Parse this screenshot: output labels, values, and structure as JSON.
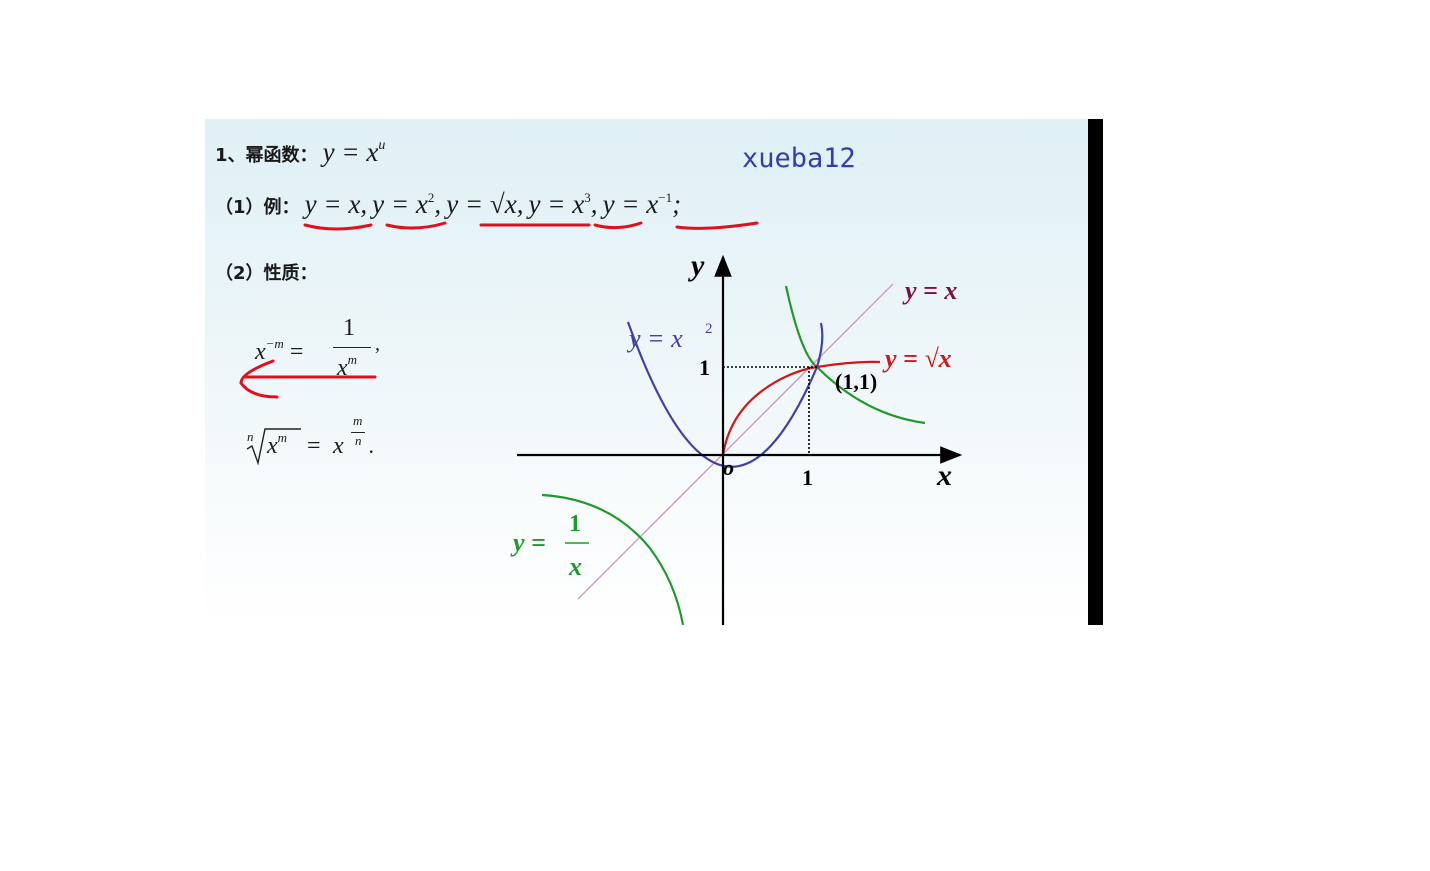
{
  "heading": {
    "label": "1、幂函数：",
    "formula_base": "y = x",
    "formula_exp": "u"
  },
  "watermark": "xueba12",
  "examples": {
    "label": "（1）例：",
    "items": [
      {
        "base": "y = x",
        "exp": "",
        "sep": ","
      },
      {
        "base": "y = x",
        "exp": "2",
        "sep": ","
      },
      {
        "base": "y = √x",
        "exp": "",
        "sep": ","
      },
      {
        "base": "y = x",
        "exp": "3",
        "sep": ","
      },
      {
        "base": "y = x",
        "exp": "−1",
        "sep": ";"
      }
    ]
  },
  "properties": {
    "label": "（2）性质：",
    "rule1": {
      "lhs_base": "x",
      "lhs_exp": "−m",
      "eq": "=",
      "num": "1",
      "den_base": "x",
      "den_exp": "m",
      "tail": ","
    },
    "rule2": {
      "root_index": "n",
      "radicand_base": "x",
      "radicand_exp": "m",
      "eq": "=",
      "rhs_base": "x",
      "rhs_num": "m",
      "rhs_den": "n",
      "tail": "."
    }
  },
  "graph": {
    "axis_x": "x",
    "axis_y": "y",
    "origin": "o",
    "tick_x": "1",
    "tick_y": "1",
    "point_label": "(1,1)",
    "labels": {
      "identity": "y = x",
      "square": "y = x",
      "square_exp": "2",
      "sqrt": "y = √x",
      "inverse_lhs": "y =",
      "inverse_num": "1",
      "inverse_den": "x"
    },
    "colors": {
      "identity": "#c8a0c8",
      "square": "#4040a8",
      "sqrt": "#d01818",
      "inverse": "#1f9a2a",
      "identity_label": "#7a1040",
      "axes": "#000000"
    }
  },
  "annotations": {
    "pen_color": "#e0101c"
  }
}
